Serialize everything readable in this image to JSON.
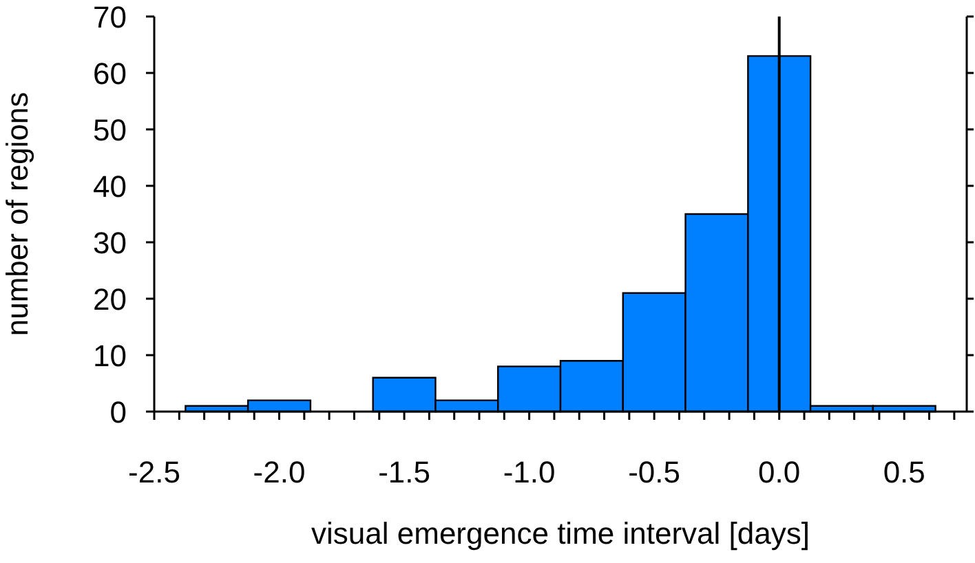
{
  "chart_data": {
    "type": "histogram",
    "xlabel": "visual emergence time interval [days]",
    "ylabel": "number of regions",
    "bins": [
      -2.375,
      -2.125,
      -1.875,
      -1.625,
      -1.375,
      -1.125,
      -0.875,
      -0.625,
      -0.375,
      -0.125,
      0.125,
      0.375,
      0.625
    ],
    "values": [
      1,
      2,
      0,
      6,
      2,
      8,
      9,
      21,
      35,
      63,
      1,
      1
    ],
    "color": "#0080ff",
    "xlim": [
      -2.5,
      0.75
    ],
    "xticks": [
      -2.5,
      {
        "value": -2.4,
        "label": null
      },
      {
        "value": -2.3,
        "label": null
      },
      {
        "value": -2.2,
        "label": null
      },
      {
        "value": -2.1,
        "label": null
      },
      {
        "value": -2.0,
        "label": "-2.0"
      },
      {
        "value": -1.9,
        "label": null
      },
      {
        "value": -1.8,
        "label": null
      },
      {
        "value": -1.7,
        "label": null
      },
      {
        "value": -1.6,
        "label": null
      },
      -1.5,
      {
        "value": -1.4,
        "label": null
      },
      {
        "value": -1.3,
        "label": null
      },
      {
        "value": -1.2,
        "label": null
      },
      {
        "value": -1.1,
        "label": null
      },
      {
        "value": -1.0,
        "label": "-1.0"
      },
      {
        "value": -0.9,
        "label": null
      },
      {
        "value": -0.8,
        "label": null
      },
      {
        "value": -0.7,
        "label": null
      },
      {
        "value": -0.6,
        "label": null
      },
      -0.5,
      {
        "value": -0.4,
        "label": null
      },
      {
        "value": -0.3,
        "label": null
      },
      {
        "value": -0.2,
        "label": null
      },
      {
        "value": -0.1,
        "label": null
      },
      {
        "value": 0,
        "label": "0.0"
      },
      {
        "value": 0.1,
        "label": null
      },
      {
        "value": 0.2,
        "label": null
      },
      {
        "value": 0.3,
        "label": null
      },
      {
        "value": 0.4,
        "label": null
      },
      0.5,
      {
        "value": 0.6,
        "label": null
      },
      {
        "value": 0.7,
        "label": null
      }
    ],
    "ylim": [
      0,
      70
    ],
    "yticks": [
      0,
      10,
      20,
      30,
      40,
      50,
      60,
      70
    ],
    "ref_lines": [
      {
        "axis": "x",
        "value": 0,
        "color": "#000000"
      }
    ]
  }
}
